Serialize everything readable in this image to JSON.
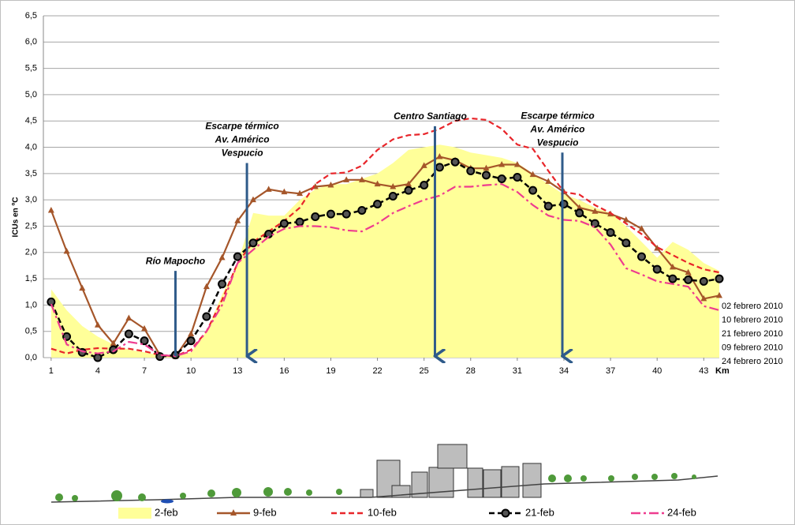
{
  "chart_data": {
    "type": "line",
    "y_label": "ICUs en ºC",
    "x_label": "Km",
    "x": [
      1,
      2,
      3,
      4,
      5,
      6,
      7,
      8,
      9,
      10,
      11,
      12,
      13,
      14,
      15,
      16,
      17,
      18,
      19,
      20,
      21,
      22,
      23,
      24,
      25,
      26,
      27,
      28,
      29,
      30,
      31,
      32,
      33,
      34,
      35,
      36,
      37,
      38,
      39,
      40,
      41,
      42,
      43,
      44
    ],
    "xlim": [
      0.5,
      44
    ],
    "xticks": [
      1,
      4,
      7,
      10,
      13,
      16,
      19,
      22,
      25,
      28,
      31,
      34,
      37,
      40,
      43
    ],
    "ylim": [
      0,
      6.5
    ],
    "yticks": [
      {
        "value": 0,
        "label": "0,0"
      },
      {
        "value": 0.5,
        "label": "0,5"
      },
      {
        "value": 1,
        "label": "1,0"
      },
      {
        "value": 1.5,
        "label": "1,5"
      },
      {
        "value": 2,
        "label": "2,0"
      },
      {
        "value": 2.5,
        "label": "2,5"
      },
      {
        "value": 3,
        "label": "3,0"
      },
      {
        "value": 3.5,
        "label": "3,5"
      },
      {
        "value": 4,
        "label": "4,0"
      },
      {
        "value": 4.5,
        "label": "4,5"
      },
      {
        "value": 5,
        "label": "5,0"
      },
      {
        "value": 5.5,
        "label": "5,5"
      },
      {
        "value": 6,
        "label": "6,0"
      },
      {
        "value": 6.5,
        "label": "6,5"
      }
    ],
    "grid": true,
    "series": [
      {
        "name": "2-feb",
        "kind": "area",
        "color": "#ffff99",
        "end_label": "02 febrero 2010",
        "values": [
          1.3,
          0.9,
          0.6,
          0.4,
          0.25,
          0.15,
          0.1,
          0.05,
          0.05,
          0.1,
          0.5,
          1.2,
          1.8,
          2.75,
          2.7,
          2.7,
          3.0,
          3.2,
          3.3,
          3.3,
          3.4,
          3.5,
          3.7,
          3.95,
          4.0,
          4.05,
          4.0,
          3.9,
          3.85,
          3.8,
          3.7,
          3.5,
          3.3,
          3.1,
          3.0,
          2.85,
          2.75,
          2.5,
          2.2,
          1.9,
          2.2,
          2.05,
          1.8,
          1.65
        ]
      },
      {
        "name": "9-feb",
        "kind": "line",
        "dash": "solid",
        "marker": "triangle",
        "color": "#a5562a",
        "end_label": "09  febrero 2010",
        "values": [
          2.8,
          2.02,
          1.32,
          0.62,
          0.27,
          0.75,
          0.55,
          0.05,
          0.02,
          0.45,
          1.35,
          1.9,
          2.6,
          3.0,
          3.2,
          3.15,
          3.12,
          3.25,
          3.28,
          3.38,
          3.38,
          3.3,
          3.25,
          3.3,
          3.65,
          3.82,
          3.75,
          3.6,
          3.6,
          3.67,
          3.67,
          3.48,
          3.35,
          3.15,
          2.85,
          2.78,
          2.73,
          2.62,
          2.45,
          2.08,
          1.72,
          1.62,
          1.12,
          1.18
        ]
      },
      {
        "name": "10-feb",
        "kind": "line",
        "dash": "dashed",
        "marker": null,
        "color": "#e8252a",
        "end_label": "10 febrero 2010",
        "values": [
          0.17,
          0.08,
          0.15,
          0.18,
          0.17,
          0.17,
          0.12,
          0.05,
          0.03,
          0.15,
          0.5,
          1.1,
          1.8,
          2.2,
          2.4,
          2.6,
          2.85,
          3.3,
          3.5,
          3.52,
          3.65,
          3.95,
          4.15,
          4.23,
          4.25,
          4.35,
          4.5,
          4.55,
          4.52,
          4.35,
          4.05,
          3.97,
          3.55,
          3.15,
          3.1,
          2.9,
          2.75,
          2.55,
          2.35,
          2.1,
          1.95,
          1.8,
          1.68,
          1.62
        ]
      },
      {
        "name": "21-feb",
        "kind": "line",
        "dash": "dashed",
        "marker": "circle",
        "color": "#000000",
        "end_label": "21 febrero 2010",
        "values": [
          1.06,
          0.4,
          0.1,
          0.0,
          0.15,
          0.45,
          0.32,
          0.02,
          0.05,
          0.32,
          0.78,
          1.4,
          1.92,
          2.18,
          2.35,
          2.55,
          2.58,
          2.68,
          2.73,
          2.73,
          2.8,
          2.92,
          3.07,
          3.18,
          3.28,
          3.62,
          3.72,
          3.55,
          3.47,
          3.4,
          3.43,
          3.18,
          2.88,
          2.92,
          2.75,
          2.55,
          2.38,
          2.18,
          1.92,
          1.68,
          1.5,
          1.48,
          1.45,
          1.5
        ]
      },
      {
        "name": "24-feb",
        "kind": "line",
        "dash": "dash-dot",
        "marker": null,
        "color": "#ee3c8f",
        "end_label": "24 febrero 2010",
        "values": [
          1.02,
          0.25,
          0.12,
          0.08,
          0.12,
          0.3,
          0.25,
          0.05,
          0.03,
          0.12,
          0.5,
          1.0,
          1.8,
          2.05,
          2.3,
          2.45,
          2.5,
          2.5,
          2.48,
          2.42,
          2.4,
          2.55,
          2.75,
          2.88,
          3.0,
          3.08,
          3.25,
          3.25,
          3.28,
          3.3,
          3.15,
          2.9,
          2.7,
          2.62,
          2.6,
          2.48,
          2.15,
          1.7,
          1.58,
          1.45,
          1.4,
          1.35,
          0.98,
          0.9
        ]
      }
    ],
    "annotations": [
      {
        "lines": [
          "Río Mapocho"
        ],
        "x": 9,
        "y": 1.65,
        "arrow": false
      },
      {
        "lines": [
          "Escarpe térmico",
          "Av. Américo",
          "Vespucio"
        ],
        "x": 13.6,
        "y": 3.7,
        "arrow": true
      },
      {
        "lines": [
          "Centro Santiago"
        ],
        "x": 25.7,
        "y": 4.4,
        "arrow": true
      },
      {
        "lines": [
          "Escarpe térmico",
          "Av. Américo",
          "Vespucio"
        ],
        "x": 33.9,
        "y": 3.9,
        "arrow": true
      }
    ]
  }
}
